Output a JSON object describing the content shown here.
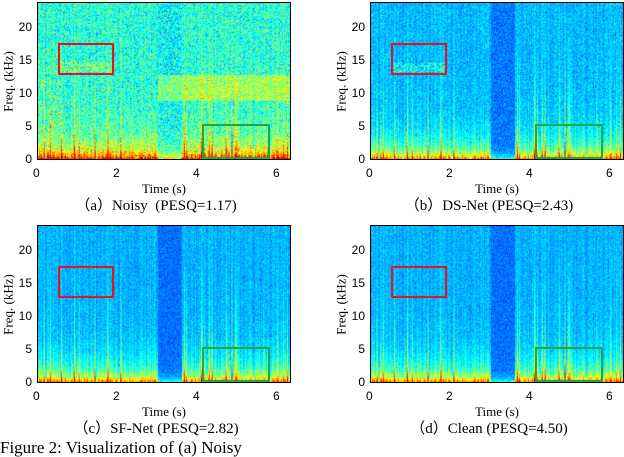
{
  "chart_data": [
    {
      "type": "heatmap",
      "caption": "（a）Noisy  (PESQ=1.17)",
      "xlabel": "Time (s)",
      "ylabel": "Freq. (kHz)",
      "xlim": [
        0,
        6.35
      ],
      "ylim": [
        0,
        24
      ],
      "xticks": [
        0,
        2,
        4,
        6
      ],
      "yticks": [
        0,
        5,
        10,
        15,
        20
      ],
      "colormap": "jet",
      "highlight_boxes": [
        {
          "color": "#e8141c",
          "t": [
            0.5,
            1.9
          ],
          "f": [
            13,
            18
          ]
        },
        {
          "color": "#1fa64a",
          "t": [
            4.1,
            5.8
          ],
          "f": [
            0.3,
            5.6
          ]
        }
      ]
    },
    {
      "type": "heatmap",
      "caption": "（b）DS-Net (PESQ=2.43)",
      "xlabel": "Time (s)",
      "ylabel": "Freq. (kHz)",
      "xlim": [
        0,
        6.35
      ],
      "ylim": [
        0,
        24
      ],
      "xticks": [
        0,
        2,
        4,
        6
      ],
      "yticks": [
        0,
        5,
        10,
        15,
        20
      ],
      "colormap": "jet",
      "highlight_boxes": [
        {
          "color": "#e8141c",
          "t": [
            0.5,
            1.9
          ],
          "f": [
            13,
            18
          ]
        },
        {
          "color": "#1fa64a",
          "t": [
            4.1,
            5.8
          ],
          "f": [
            0.3,
            5.6
          ]
        }
      ]
    },
    {
      "type": "heatmap",
      "caption": "（c）SF-Net (PESQ=2.82)",
      "xlabel": "Time (s)",
      "ylabel": "Freq. (kHz)",
      "xlim": [
        0,
        6.35
      ],
      "ylim": [
        0,
        24
      ],
      "xticks": [
        0,
        2,
        4,
        6
      ],
      "yticks": [
        0,
        5,
        10,
        15,
        20
      ],
      "colormap": "jet",
      "highlight_boxes": [
        {
          "color": "#e8141c",
          "t": [
            0.5,
            1.9
          ],
          "f": [
            13,
            18
          ]
        },
        {
          "color": "#1fa64a",
          "t": [
            4.1,
            5.8
          ],
          "f": [
            0.3,
            5.6
          ]
        }
      ]
    },
    {
      "type": "heatmap",
      "caption": "（d）Clean (PESQ=4.50)",
      "xlabel": "Time (s)",
      "ylabel": "Freq. (kHz)",
      "xlim": [
        0,
        6.35
      ],
      "ylim": [
        0,
        24
      ],
      "xticks": [
        0,
        2,
        4,
        6
      ],
      "yticks": [
        0,
        5,
        10,
        15,
        20
      ],
      "colormap": "jet",
      "highlight_boxes": [
        {
          "color": "#e8141c",
          "t": [
            0.5,
            1.9
          ],
          "f": [
            13,
            18
          ]
        },
        {
          "color": "#1fa64a",
          "t": [
            4.1,
            5.8
          ],
          "f": [
            0.3,
            5.6
          ]
        }
      ]
    }
  ],
  "figure_caption": "Figure 2:  Visualization of                               (a)  Noisy"
}
